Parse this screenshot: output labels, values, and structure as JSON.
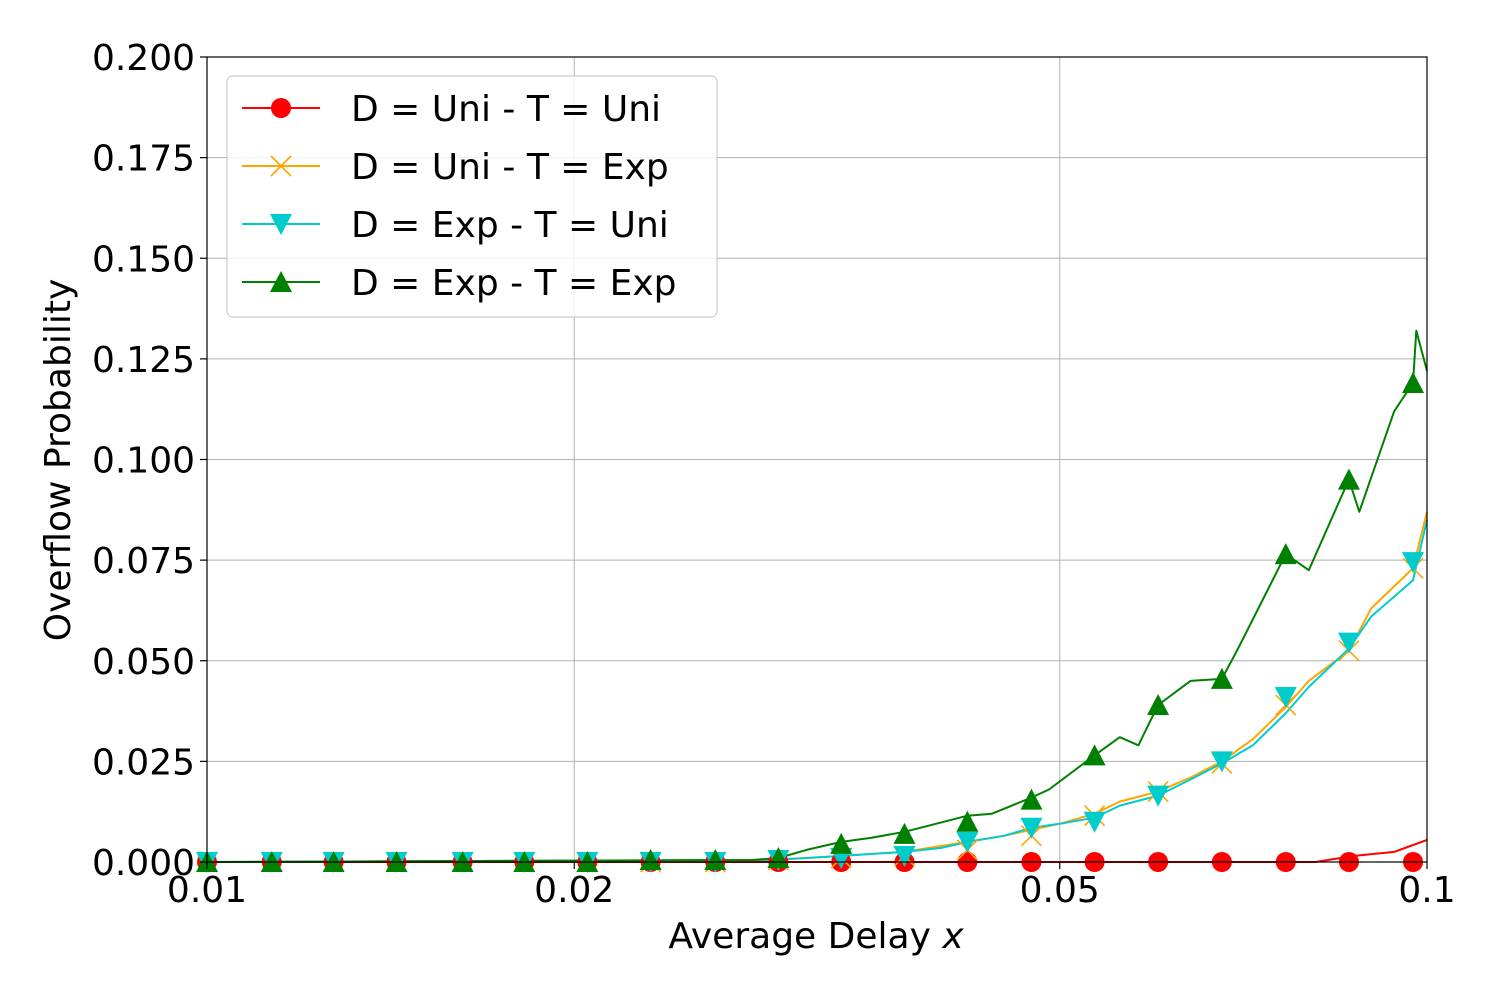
{
  "chart_data": {
    "type": "line",
    "title": "",
    "xlabel": "Average Delay",
    "xlabel_var": "x",
    "ylabel": "Overflow Probability",
    "xscale": "log",
    "xlim": [
      0.01,
      0.1
    ],
    "ylim": [
      0,
      0.2
    ],
    "grid": true,
    "legend_position": "top-left",
    "x_ticks": [
      {
        "value": 0.01,
        "label": "0.01"
      },
      {
        "value": 0.02,
        "label": "0.02"
      },
      {
        "value": 0.05,
        "label": "0.05"
      },
      {
        "value": 0.1,
        "label": "0.1"
      }
    ],
    "y_ticks": [
      {
        "value": 0,
        "label": "0.000"
      },
      {
        "value": 0.025,
        "label": "0.025"
      },
      {
        "value": 0.05,
        "label": "0.050"
      },
      {
        "value": 0.075,
        "label": "0.075"
      },
      {
        "value": 0.1,
        "label": "0.100"
      },
      {
        "value": 0.125,
        "label": "0.125"
      },
      {
        "value": 0.15,
        "label": "0.150"
      },
      {
        "value": 0.175,
        "label": "0.175"
      },
      {
        "value": 0.2,
        "label": "0.200"
      }
    ],
    "series": [
      {
        "name": "D = Uni - T = Uni",
        "color": "#ff0000",
        "marker": "circle",
        "x": [
          0.01,
          0.04,
          0.081,
          0.087,
          0.094,
          0.1
        ],
        "y": [
          0,
          0,
          0,
          0.0015,
          0.0025,
          0.0055
        ],
        "marker_x": [
          0.01,
          0.0113,
          0.0127,
          0.0143,
          0.0162,
          0.0182,
          0.0205,
          0.0231,
          0.0261,
          0.0294,
          0.0331,
          0.0373,
          0.042,
          0.0474,
          0.0534,
          0.0602,
          0.0679,
          0.0766,
          0.0863,
          0.0974
        ],
        "marker_y": [
          0,
          0,
          0,
          0,
          0,
          0,
          0,
          0,
          0,
          0,
          0,
          0,
          0,
          0,
          0,
          0,
          0,
          0,
          0,
          0
        ]
      },
      {
        "name": "D = Uni - T = Exp",
        "color": "#ffa500",
        "marker": "x",
        "x": [
          0.01,
          0.029,
          0.031,
          0.033,
          0.035,
          0.0373,
          0.04,
          0.042,
          0.045,
          0.0474,
          0.05,
          0.0534,
          0.056,
          0.0602,
          0.064,
          0.0679,
          0.072,
          0.0766,
          0.08,
          0.0863,
          0.09,
          0.0974,
          0.1
        ],
        "y": [
          0,
          0.0005,
          0.001,
          0.0015,
          0.002,
          0.0025,
          0.004,
          0.005,
          0.0065,
          0.008,
          0.0095,
          0.012,
          0.015,
          0.0175,
          0.021,
          0.025,
          0.0305,
          0.0385,
          0.045,
          0.0525,
          0.063,
          0.073,
          0.087
        ],
        "marker_x": [
          0.01,
          0.0113,
          0.0127,
          0.0143,
          0.0162,
          0.0182,
          0.0205,
          0.0231,
          0.0261,
          0.0294,
          0.0331,
          0.0373,
          0.042,
          0.0474,
          0.0534,
          0.0602,
          0.0679,
          0.0766,
          0.0863,
          0.0974
        ],
        "marker_y": [
          0,
          0,
          0,
          0,
          0,
          0,
          0,
          0,
          0,
          0.0005,
          0.001,
          0.0015,
          0.003,
          0.0065,
          0.0115,
          0.0175,
          0.0245,
          0.039,
          0.0525,
          0.073
        ]
      },
      {
        "name": "D = Exp - T = Uni",
        "color": "#00cccc",
        "marker": "triangle-down",
        "x": [
          0.01,
          0.029,
          0.031,
          0.033,
          0.035,
          0.0373,
          0.04,
          0.042,
          0.045,
          0.0474,
          0.05,
          0.0534,
          0.056,
          0.0602,
          0.064,
          0.0679,
          0.072,
          0.0766,
          0.08,
          0.0863,
          0.09,
          0.0974,
          0.1
        ],
        "y": [
          0,
          0.0005,
          0.001,
          0.0015,
          0.002,
          0.0025,
          0.0035,
          0.005,
          0.0065,
          0.0085,
          0.0095,
          0.011,
          0.014,
          0.0165,
          0.0205,
          0.0245,
          0.029,
          0.037,
          0.0435,
          0.053,
          0.061,
          0.07,
          0.085
        ],
        "marker_x": [
          0.01,
          0.0113,
          0.0127,
          0.0143,
          0.0162,
          0.0182,
          0.0205,
          0.0231,
          0.0261,
          0.0294,
          0.0331,
          0.0373,
          0.042,
          0.0474,
          0.0534,
          0.0602,
          0.0679,
          0.0766,
          0.0863,
          0.0974
        ],
        "marker_y": [
          0,
          0,
          0,
          0,
          0,
          0,
          0,
          0,
          0,
          0.0005,
          0.001,
          0.0015,
          0.005,
          0.0085,
          0.01,
          0.0165,
          0.025,
          0.041,
          0.0545,
          0.0745
        ]
      },
      {
        "name": "D = Exp - T = Exp",
        "color": "#008000",
        "marker": "triangle-up",
        "x": [
          0.01,
          0.028,
          0.0294,
          0.031,
          0.0331,
          0.035,
          0.0373,
          0.039,
          0.042,
          0.044,
          0.0474,
          0.049,
          0.0534,
          0.056,
          0.058,
          0.0602,
          0.064,
          0.0679,
          0.07,
          0.0766,
          0.08,
          0.0863,
          0.088,
          0.094,
          0.0974,
          0.098,
          0.1
        ],
        "y": [
          0,
          0.0005,
          0.001,
          0.003,
          0.005,
          0.006,
          0.0075,
          0.009,
          0.0115,
          0.012,
          0.016,
          0.018,
          0.0265,
          0.031,
          0.029,
          0.039,
          0.045,
          0.0455,
          0.053,
          0.0765,
          0.0725,
          0.095,
          0.087,
          0.112,
          0.119,
          0.132,
          0.122
        ],
        "marker_x": [
          0.01,
          0.0113,
          0.0127,
          0.0143,
          0.0162,
          0.0182,
          0.0205,
          0.0231,
          0.0261,
          0.0294,
          0.0331,
          0.0373,
          0.042,
          0.0474,
          0.0534,
          0.0602,
          0.0679,
          0.0766,
          0.0863,
          0.0974
        ],
        "marker_y": [
          0,
          0,
          0,
          0,
          0,
          0,
          0,
          0.0005,
          0.0005,
          0.001,
          0.0045,
          0.007,
          0.01,
          0.0155,
          0.0265,
          0.039,
          0.0455,
          0.0765,
          0.095,
          0.119
        ]
      }
    ]
  }
}
